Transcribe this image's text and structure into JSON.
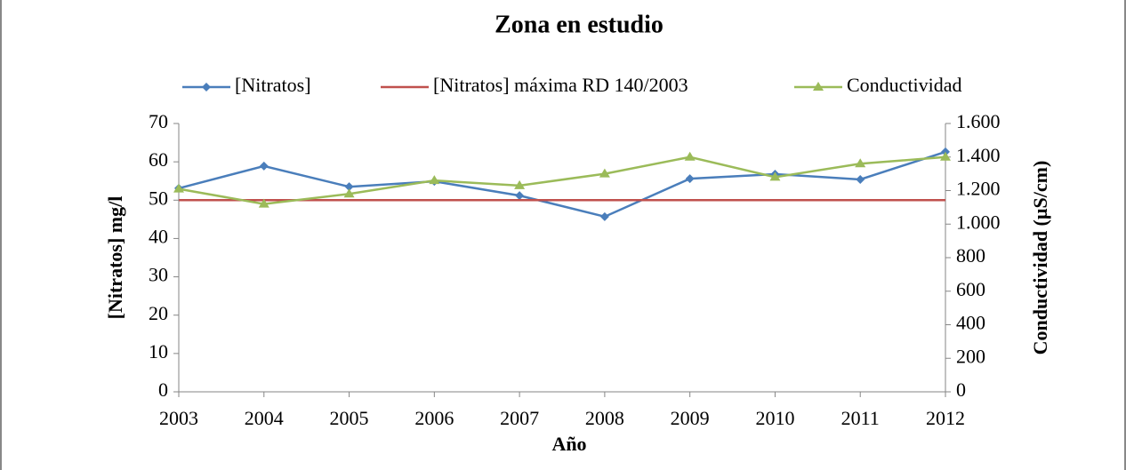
{
  "chart_data": {
    "type": "line",
    "title": "Zona en estudio",
    "x_label": "Año",
    "y_label": "[Nitratos] mg/l",
    "y2_label": "Conductividad (µS/cm)",
    "x": [
      2003,
      2004,
      2005,
      2006,
      2007,
      2008,
      2009,
      2010,
      2011,
      2012
    ],
    "xlim": [
      2003,
      2012
    ],
    "xticks": [
      2003,
      2004,
      2005,
      2006,
      2007,
      2008,
      2009,
      2010,
      2011,
      2012
    ],
    "ylim": [
      0,
      70
    ],
    "yticks": [
      0,
      10,
      20,
      30,
      40,
      50,
      60,
      70
    ],
    "y2lim": [
      0,
      1600
    ],
    "y2ticks": [
      0,
      200,
      400,
      600,
      800,
      {
        "value": 1000,
        "label": "1.000"
      },
      {
        "value": 1200,
        "label": "1.200"
      },
      {
        "value": 1400,
        "label": "1.400"
      },
      {
        "value": 1600,
        "label": "1.600"
      }
    ],
    "grid": false,
    "legend": "top",
    "series": [
      {
        "name": "[Nitratos]",
        "color": "#4a7ebb",
        "marker": "diamond",
        "values": [
          53.1,
          58.9,
          53.5,
          54.9,
          51.2,
          45.7,
          55.6,
          56.8,
          55.4,
          62.6
        ]
      },
      {
        "name": "[Nitratos] máxima RD 140/2003",
        "color": "#c0504d",
        "marker": "none",
        "values": [
          50,
          50,
          50,
          50,
          50,
          50,
          50,
          50,
          50,
          50
        ]
      },
      {
        "name": "Conductividad",
        "color": "#9bbb59",
        "marker": "triangle",
        "axis": "y2",
        "values": [
          1210,
          1120,
          1180,
          1260,
          1230,
          1300,
          1400,
          1280,
          1360,
          1400
        ]
      }
    ]
  }
}
